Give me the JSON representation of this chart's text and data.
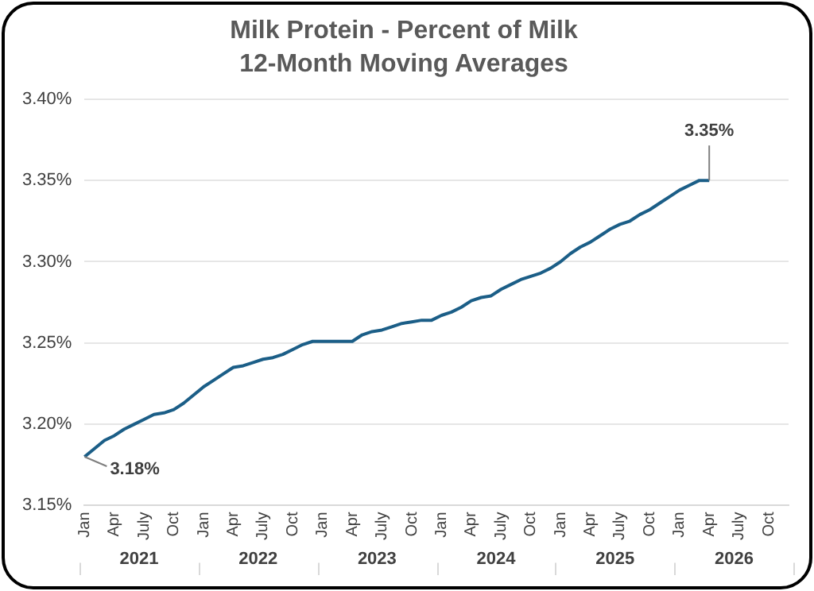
{
  "chart_data": {
    "type": "line",
    "title": "Milk Protein - Percent of Milk",
    "subtitle": "12-Month Moving Averages",
    "categories": [
      "Jan",
      null,
      null,
      "Apr",
      null,
      null,
      "July",
      null,
      null,
      "Oct",
      null,
      null,
      "Jan",
      null,
      null,
      "Apr",
      null,
      null,
      "July",
      null,
      null,
      "Oct",
      null,
      null,
      "Jan",
      null,
      null,
      "Apr",
      null,
      null,
      "July",
      null,
      null,
      "Oct",
      null,
      null,
      "Jan",
      null,
      null,
      "Apr",
      null,
      null,
      "July",
      null,
      null,
      "Oct",
      null,
      null,
      "Jan",
      null,
      null,
      "Apr",
      null,
      null,
      "July",
      null,
      null,
      "Oct",
      null,
      null,
      "Jan",
      null,
      null,
      "Apr",
      null,
      null,
      "July",
      null,
      null,
      "Oct",
      null,
      null
    ],
    "annotations": [
      "2021",
      "2022",
      "2023",
      "2024",
      "2025",
      "2026"
    ],
    "series": [
      {
        "color": "#1b5e87",
        "values": [
          3.18,
          3.185,
          3.19,
          3.193,
          3.197,
          3.2,
          3.203,
          3.206,
          3.207,
          3.209,
          3.213,
          3.218,
          3.223,
          3.227,
          3.231,
          3.235,
          3.236,
          3.238,
          3.24,
          3.241,
          3.243,
          3.246,
          3.249,
          3.251,
          3.251,
          3.251,
          3.251,
          3.251,
          3.255,
          3.257,
          3.258,
          3.26,
          3.262,
          3.263,
          3.264,
          3.264,
          3.267,
          3.269,
          3.272,
          3.276,
          3.278,
          3.279,
          3.283,
          3.286,
          3.289,
          3.291,
          3.293,
          3.296,
          3.3,
          3.305,
          3.309,
          3.312,
          3.316,
          3.32,
          3.323,
          3.325,
          3.329,
          3.332,
          3.336,
          3.34,
          3.344,
          3.347,
          3.35,
          3.35,
          null,
          null,
          null,
          null,
          null,
          null,
          null,
          null
        ],
        "value_labels": [
          "3.18%",
          null,
          null,
          null,
          null,
          null,
          null,
          null,
          null,
          null,
          null,
          null,
          null,
          null,
          null,
          null,
          null,
          null,
          null,
          null,
          null,
          null,
          null,
          null,
          null,
          null,
          null,
          null,
          null,
          null,
          null,
          null,
          null,
          null,
          null,
          null,
          null,
          null,
          null,
          null,
          null,
          null,
          null,
          null,
          null,
          null,
          null,
          null,
          null,
          null,
          null,
          null,
          null,
          null,
          null,
          null,
          null,
          null,
          null,
          null,
          null,
          null,
          null,
          "3.35%",
          null,
          null,
          null,
          null,
          null,
          null,
          null,
          null
        ]
      }
    ],
    "ylim": [
      3.15,
      3.4
    ],
    "yticks": [
      {
        "value": 3.15,
        "label": "3.15%"
      },
      {
        "value": 3.2,
        "label": "3.20%"
      },
      {
        "value": 3.25,
        "label": "3.25%"
      },
      {
        "value": 3.3,
        "label": "3.30%"
      },
      {
        "value": 3.35,
        "label": "3.35%"
      },
      {
        "value": 3.4,
        "label": "3.40%"
      }
    ],
    "grid": "y",
    "legend": false,
    "marker": "none",
    "line_style": "solid"
  }
}
